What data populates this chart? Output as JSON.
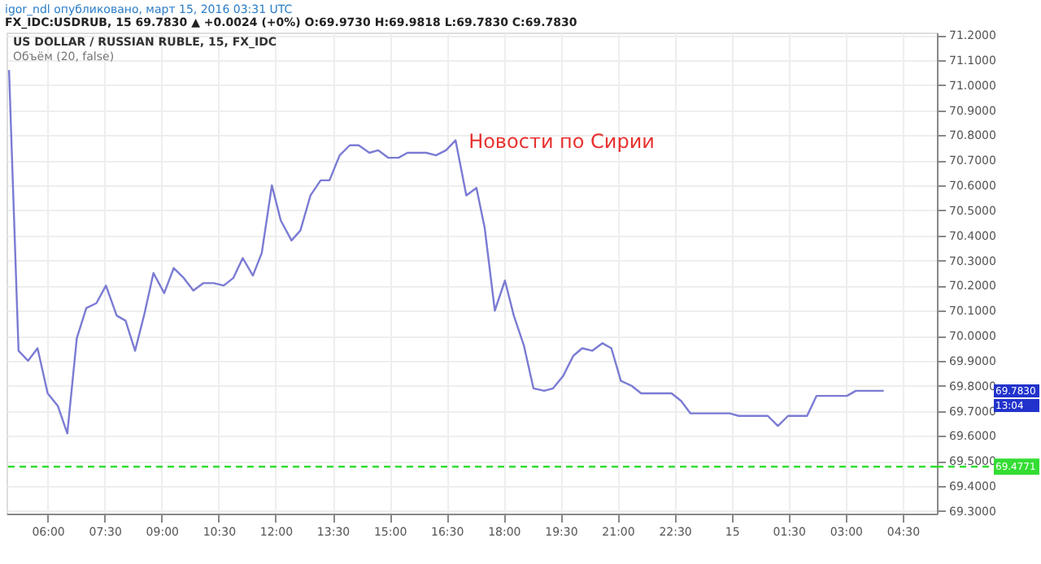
{
  "chart_data": {
    "type": "line",
    "title": "US DOLLAR / RUSSIAN RUBLE, 15, FX_IDC",
    "subtitle": "Объём (20, false)",
    "annotations": [
      "igor_ndl опубликовано, март 15, 2016 03:31 UTC",
      "FX_IDC:USDRUB, 15 69.7830 ▲ +0.0024 (+0%) O:69.9730 H:69.9818 L:69.7830 C:69.7830",
      "13:04",
      "69.7830",
      {
        "text": "Новости по Сирии",
        "x": "2016-03-14T16:44",
        "y": 70.776
      }
    ],
    "series": [
      {
        "color": "#7b7bd4",
        "x": [
          "2016-03-14T04:59",
          "2016-03-14T05:14",
          "2016-03-14T05:29",
          "2016-03-14T05:44",
          "2016-03-14T06:00",
          "2016-03-14T06:16",
          "2016-03-14T06:31",
          "2016-03-14T06:46",
          "2016-03-14T07:01",
          "2016-03-14T07:17",
          "2016-03-14T07:32",
          "2016-03-14T07:49",
          "2016-03-14T08:03",
          "2016-03-14T08:18",
          "2016-03-14T08:33",
          "2016-03-14T08:47",
          "2016-03-14T09:04",
          "2016-03-14T09:19",
          "2016-03-14T09:35",
          "2016-03-14T09:50",
          "2016-03-14T10:06",
          "2016-03-14T10:22",
          "2016-03-14T10:38",
          "2016-03-14T10:53",
          "2016-03-14T11:08",
          "2016-03-14T11:24",
          "2016-03-14T11:38",
          "2016-03-14T11:54",
          "2016-03-14T12:08",
          "2016-03-14T12:25",
          "2016-03-14T12:39",
          "2016-03-14T12:55",
          "2016-03-14T13:11",
          "2016-03-14T13:25",
          "2016-03-14T13:41",
          "2016-03-14T13:57",
          "2016-03-14T14:11",
          "2016-03-14T14:28",
          "2016-03-14T14:42",
          "2016-03-14T14:58",
          "2016-03-14T15:14",
          "2016-03-14T15:28",
          "2016-03-14T15:43",
          "2016-03-14T15:58",
          "2016-03-14T16:13",
          "2016-03-14T16:29",
          "2016-03-14T16:44",
          "2016-03-14T17:01",
          "2016-03-14T17:17",
          "2016-03-14T17:30",
          "2016-03-14T17:46",
          "2016-03-14T18:02",
          "2016-03-14T18:16",
          "2016-03-14T18:32",
          "2016-03-14T18:47",
          "2016-03-14T19:04",
          "2016-03-14T19:18",
          "2016-03-14T19:34",
          "2016-03-14T19:50",
          "2016-03-14T20:04",
          "2016-03-14T20:20",
          "2016-03-14T20:36",
          "2016-03-14T20:50",
          "2016-03-14T21:05",
          "2016-03-14T21:22",
          "2016-03-14T21:37",
          "2016-03-14T21:53",
          "2016-03-14T22:09",
          "2016-03-14T22:25",
          "2016-03-14T22:40",
          "2016-03-14T22:55",
          "2016-03-14T23:11",
          "2016-03-14T23:25",
          "2016-03-14T23:41",
          "2016-03-14T23:57",
          "2016-03-15T00:11",
          "2016-03-15T00:27",
          "2016-03-15T00:43",
          "2016-03-15T00:57",
          "2016-03-15T01:13",
          "2016-03-15T01:29",
          "2016-03-15T01:45",
          "2016-03-15T01:59",
          "2016-03-15T02:14",
          "2016-03-15T02:30",
          "2016-03-15T02:46",
          "2016-03-15T03:02",
          "2016-03-15T03:16",
          "2016-03-15T03:32",
          "2016-03-15T03:49",
          "2016-03-15T04:00"
        ],
        "values": [
          71.06,
          69.94,
          69.9,
          69.95,
          69.77,
          69.72,
          69.61,
          69.99,
          70.11,
          70.13,
          70.2,
          70.08,
          70.06,
          69.94,
          70.09,
          70.25,
          70.17,
          70.27,
          70.23,
          70.18,
          70.21,
          70.21,
          70.2,
          70.23,
          70.31,
          70.24,
          70.33,
          70.6,
          70.46,
          70.38,
          70.42,
          70.56,
          70.62,
          70.62,
          70.72,
          70.76,
          70.76,
          70.73,
          70.74,
          70.71,
          70.71,
          70.73,
          70.73,
          70.73,
          70.72,
          70.74,
          70.78,
          70.56,
          70.59,
          70.43,
          70.1,
          70.22,
          70.08,
          69.96,
          69.79,
          69.78,
          69.79,
          69.84,
          69.92,
          69.95,
          69.94,
          69.97,
          69.95,
          69.82,
          69.8,
          69.77,
          69.77,
          69.77,
          69.77,
          69.74,
          69.69,
          69.69,
          69.69,
          69.69,
          69.69,
          69.68,
          69.68,
          69.68,
          69.68,
          69.64,
          69.68,
          69.68,
          69.68,
          69.76,
          69.76,
          69.76,
          69.76,
          69.78,
          69.78,
          69.78,
          69.78
        ]
      }
    ],
    "xlim": [
      "2016-03-14T04:55",
      "2016-03-15T05:24"
    ],
    "xticks": [
      {
        "value": "2016-03-14T06:00",
        "label": "06:00"
      },
      {
        "value": "2016-03-14T07:30",
        "label": "07:30"
      },
      {
        "value": "2016-03-14T09:00",
        "label": "09:00"
      },
      {
        "value": "2016-03-14T10:30",
        "label": "10:30"
      },
      {
        "value": "2016-03-14T12:00",
        "label": "12:00"
      },
      {
        "value": "2016-03-14T13:30",
        "label": "13:30"
      },
      {
        "value": "2016-03-14T15:00",
        "label": "15:00"
      },
      {
        "value": "2016-03-14T16:30",
        "label": "16:30"
      },
      {
        "value": "2016-03-14T18:00",
        "label": "18:00"
      },
      {
        "value": "2016-03-14T19:30",
        "label": "19:30"
      },
      {
        "value": "2016-03-14T21:00",
        "label": "21:00"
      },
      {
        "value": "2016-03-14T22:30",
        "label": "22:30"
      },
      {
        "value": "2016-03-15T00:00",
        "label": "15"
      },
      {
        "value": "2016-03-15T01:30",
        "label": "01:30"
      },
      {
        "value": "2016-03-15T03:00",
        "label": "03:00"
      },
      {
        "value": "2016-03-15T04:30",
        "label": "04:30"
      }
    ],
    "ylim": [
      69.29,
      71.21
    ],
    "yticks": [
      {
        "value": 69.3,
        "label": "69.3000"
      },
      {
        "value": 69.4,
        "label": "69.4000"
      },
      {
        "value": 69.5,
        "label": "69.5000"
      },
      {
        "value": 69.6,
        "label": "69.6000"
      },
      {
        "value": 69.7,
        "label": "69.7000"
      },
      {
        "value": 69.8,
        "label": "69.8000"
      },
      {
        "value": 69.9,
        "label": "69.9000"
      },
      {
        "value": 70.0,
        "label": "70.0000"
      },
      {
        "value": 70.1,
        "label": "70.1000"
      },
      {
        "value": 70.2,
        "label": "70.2000"
      },
      {
        "value": 70.3,
        "label": "70.3000"
      },
      {
        "value": 70.4,
        "label": "70.4000"
      },
      {
        "value": 70.5,
        "label": "70.5000"
      },
      {
        "value": 70.6,
        "label": "70.6000"
      },
      {
        "value": 70.7,
        "label": "70.7000"
      },
      {
        "value": 70.8,
        "label": "70.8000"
      },
      {
        "value": 70.9,
        "label": "70.9000"
      },
      {
        "value": 71.0,
        "label": "71.0000"
      },
      {
        "value": 71.1,
        "label": "71.1000"
      },
      {
        "value": 71.2,
        "label": "71.2000"
      }
    ],
    "ref_lines": [
      {
        "axis": "y",
        "value": 69.4771,
        "label": "69.4771",
        "color": "#33dd33",
        "line_style": "dashed"
      }
    ],
    "grid": true,
    "line_style": "solid",
    "marker": "none"
  }
}
